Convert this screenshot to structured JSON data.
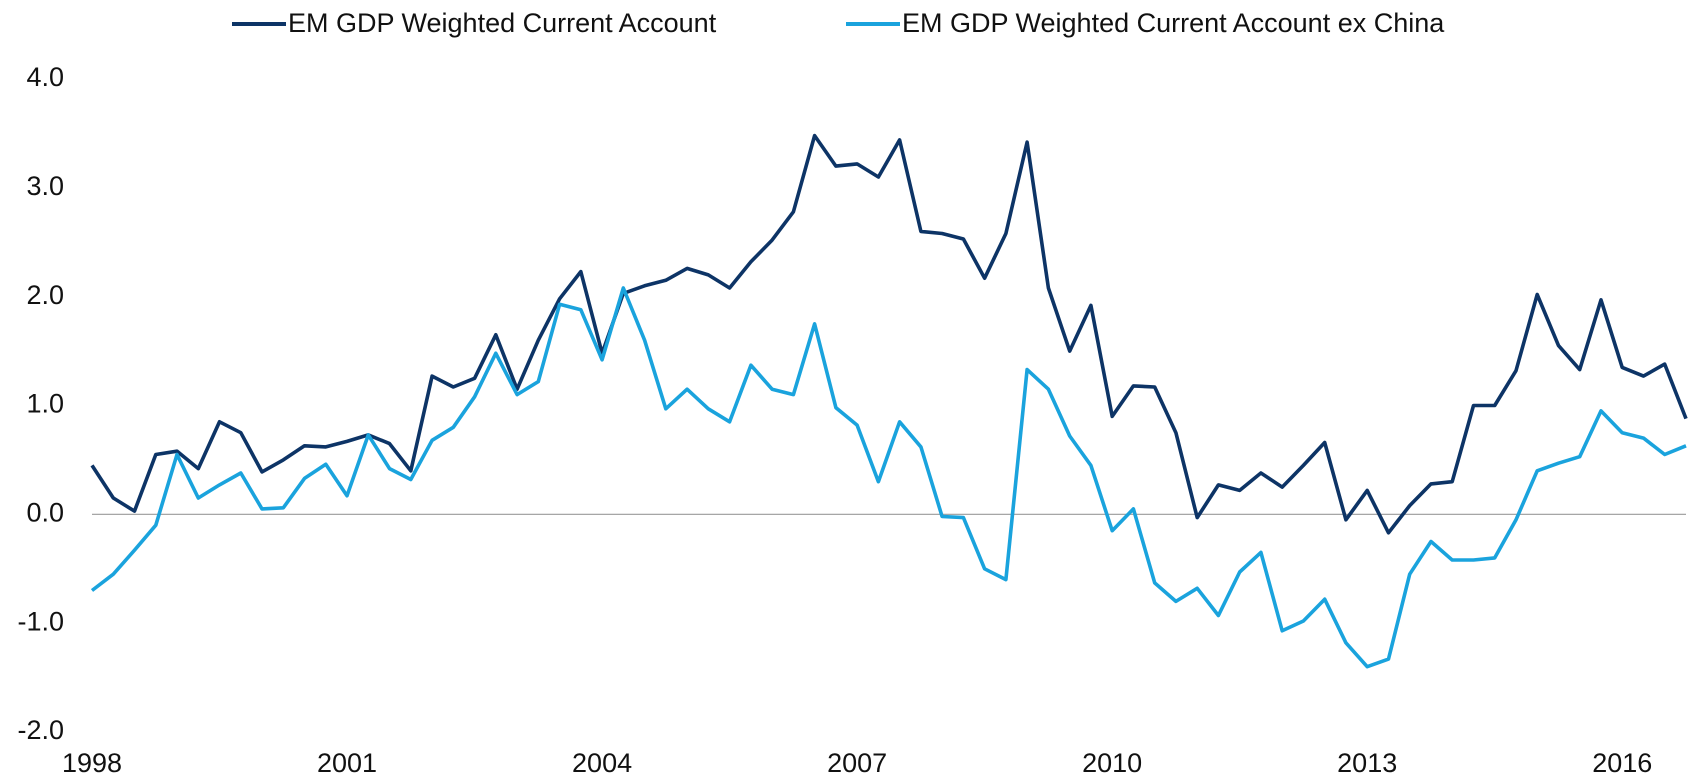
{
  "chart_data": {
    "type": "line",
    "x": [
      1998,
      1998.25,
      1998.5,
      1998.75,
      1999,
      1999.25,
      1999.5,
      1999.75,
      2000,
      2000.25,
      2000.5,
      2000.75,
      2001,
      2001.25,
      2001.5,
      2001.75,
      2002,
      2002.25,
      2002.5,
      2002.75,
      2003,
      2003.25,
      2003.5,
      2003.75,
      2004,
      2004.25,
      2004.5,
      2004.75,
      2005,
      2005.25,
      2005.5,
      2005.75,
      2006,
      2006.25,
      2006.5,
      2006.75,
      2007,
      2007.25,
      2007.5,
      2007.75,
      2008,
      2008.25,
      2008.5,
      2008.75,
      2009,
      2009.25,
      2009.5,
      2009.75,
      2010,
      2010.25,
      2010.5,
      2010.75,
      2011,
      2011.25,
      2011.5,
      2011.75,
      2012,
      2012.25,
      2012.5,
      2012.75,
      2013,
      2013.25,
      2013.5,
      2013.75,
      2014,
      2014.25,
      2014.5,
      2014.75,
      2015,
      2015.25,
      2015.5,
      2015.75,
      2016,
      2016.25,
      2016.5,
      2016.75
    ],
    "series": [
      {
        "name": "EM GDP Weighted Current Account",
        "color": "#0d3466",
        "values": [
          0.45,
          0.15,
          0.03,
          0.55,
          0.58,
          0.42,
          0.85,
          0.75,
          0.39,
          0.5,
          0.63,
          0.62,
          0.67,
          0.73,
          0.65,
          0.4,
          1.27,
          1.17,
          1.25,
          1.65,
          1.15,
          1.6,
          1.98,
          2.23,
          1.48,
          2.03,
          2.1,
          2.15,
          2.26,
          2.2,
          2.08,
          2.32,
          2.52,
          2.78,
          3.48,
          3.2,
          3.22,
          3.1,
          3.44,
          2.6,
          2.58,
          2.53,
          2.17,
          2.58,
          3.42,
          2.08,
          1.5,
          1.92,
          0.9,
          1.18,
          1.17,
          0.75,
          -0.03,
          0.27,
          0.22,
          0.38,
          0.25,
          0.45,
          0.66,
          -0.05,
          0.22,
          -0.17,
          0.08,
          0.28,
          0.3,
          1.0,
          1.0,
          1.32,
          2.02,
          1.55,
          1.33,
          1.97,
          1.35,
          1.27,
          1.38,
          0.88
        ]
      },
      {
        "name": "EM GDP Weighted Current Account ex China",
        "color": "#1aa3dd",
        "values": [
          -0.7,
          -0.55,
          -0.33,
          -0.1,
          0.55,
          0.15,
          0.27,
          0.38,
          0.05,
          0.06,
          0.33,
          0.46,
          0.17,
          0.73,
          0.42,
          0.32,
          0.68,
          0.8,
          1.08,
          1.48,
          1.1,
          1.22,
          1.93,
          1.88,
          1.42,
          2.08,
          1.6,
          0.97,
          1.15,
          0.97,
          0.85,
          1.37,
          1.15,
          1.1,
          1.75,
          0.98,
          0.82,
          0.3,
          0.85,
          0.62,
          -0.02,
          -0.03,
          -0.5,
          -0.6,
          1.33,
          1.15,
          0.72,
          0.45,
          -0.15,
          0.05,
          -0.63,
          -0.8,
          -0.68,
          -0.93,
          -0.53,
          -0.35,
          -1.07,
          -0.98,
          -0.78,
          -1.18,
          -1.4,
          -1.33,
          -0.55,
          -0.25,
          -0.42,
          -0.42,
          -0.4,
          -0.05,
          0.4,
          0.47,
          0.53,
          0.95,
          0.75,
          0.7,
          0.55,
          0.63
        ]
      }
    ],
    "xlim": [
      1998,
      2016.75
    ],
    "xticks": [
      1998,
      2001,
      2004,
      2007,
      2010,
      2013,
      2016
    ],
    "ylim": [
      -2,
      4
    ],
    "yticks": [
      {
        "value": -2,
        "label": "-2.0"
      },
      {
        "value": -1,
        "label": "-1.0"
      },
      {
        "value": 0,
        "label": "0.0"
      },
      {
        "value": 1,
        "label": "1.0"
      },
      {
        "value": 2,
        "label": "2.0"
      },
      {
        "value": 3,
        "label": "3.0"
      },
      {
        "value": 4,
        "label": "4.0"
      }
    ],
    "zero_line": true,
    "grid": false,
    "legend": "top"
  }
}
